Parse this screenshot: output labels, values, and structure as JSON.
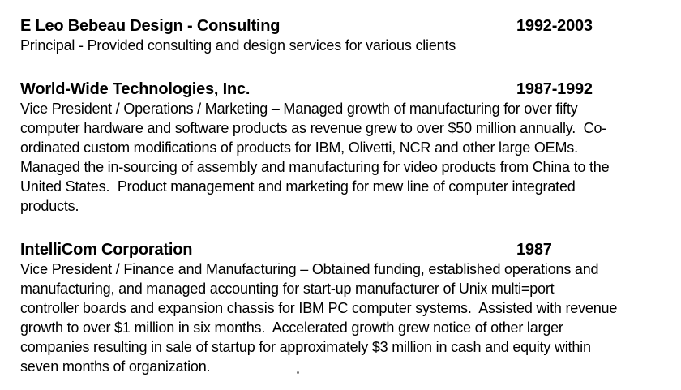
{
  "resume": {
    "entries": [
      {
        "title": "E Leo Bebeau Design - Consulting",
        "dates": "1992-2003",
        "body": "Principal - Provided consulting and design services for various clients"
      },
      {
        "title": "World-Wide Technologies, Inc.",
        "dates": "1987-1992",
        "body": "Vice President / Operations / Marketing – Managed growth of manufacturing for over fifty\ncomputer hardware and software products as revenue grew to over $50 million annually.  Co-\nordinated custom modifications of products for IBM, Olivetti, NCR and other large OEMs.\nManaged the in-sourcing of assembly and manufacturing for video products from China to the\nUnited States.  Product management and marketing for mew line of computer integrated\nproducts."
      },
      {
        "title": "IntelliCom Corporation",
        "dates": "1987",
        "body": "Vice President / Finance and Manufacturing – Obtained funding, established operations and\nmanufacturing, and managed accounting for start-up manufacturer of Unix multi=port\ncontroller boards and expansion chassis for IBM PC computer systems.  Assisted with revenue\ngrowth to over $1 million in six months.  Accelerated growth grew notice of other larger\ncompanies resulting in sale of startup for approximately $3 million in cash and equity within\nseven months of organization."
      }
    ]
  },
  "colors": {
    "background": "#ffffff",
    "text": "#000000"
  }
}
